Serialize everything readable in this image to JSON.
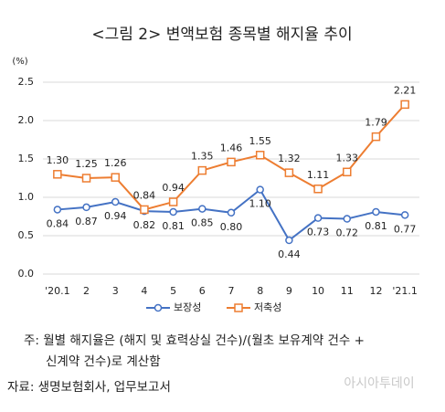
{
  "chart_data": {
    "type": "line",
    "title": "<그림 2> 변액보험 종목별 해지율 추이",
    "y_unit": "(%)",
    "categories": [
      "'20.1",
      "2",
      "3",
      "4",
      "5",
      "6",
      "7",
      "8",
      "9",
      "10",
      "11",
      "12",
      "'21.1"
    ],
    "series": [
      {
        "name": "보장성",
        "color": "#4472c4",
        "marker": "circle",
        "label_position": "below",
        "values": [
          0.84,
          0.87,
          0.94,
          0.82,
          0.81,
          0.85,
          0.8,
          1.1,
          0.44,
          0.73,
          0.72,
          0.81,
          0.77
        ],
        "value_labels": [
          "0.84",
          "0.87",
          "0.94",
          "0.82",
          "0.81",
          "0.85",
          "0.80",
          "1.10",
          "0.44",
          "0.73",
          "0.72",
          "0.81",
          "0.77"
        ]
      },
      {
        "name": "저축성",
        "color": "#ed7d31",
        "marker": "square",
        "label_position": "above",
        "values": [
          1.3,
          1.25,
          1.26,
          0.84,
          0.94,
          1.35,
          1.46,
          1.55,
          1.32,
          1.11,
          1.33,
          1.79,
          2.21
        ],
        "value_labels": [
          "1.30",
          "1.25",
          "1.26",
          "0.84",
          "0.94",
          "1.35",
          "1.46",
          "1.55",
          "1.32",
          "1.11",
          "1.33",
          "1.79",
          "2.21"
        ]
      }
    ],
    "ylim": [
      0,
      2.5
    ],
    "yticks": [
      {
        "value": 0,
        "label": "0.0"
      },
      0.5,
      {
        "value": 1,
        "label": "1.0"
      },
      1.5,
      {
        "value": 2,
        "label": "2.0"
      },
      2.5
    ],
    "grid": true,
    "legend": "bottom",
    "notes": [
      "주: 월별 해지율은 (해지 및 효력상실 건수)/(월초 보유계약 건수 +",
      "신계약 건수)로 계산함"
    ],
    "source": "자료: 생명보험회사, 업무보고서",
    "watermark": "아시아투데이"
  }
}
